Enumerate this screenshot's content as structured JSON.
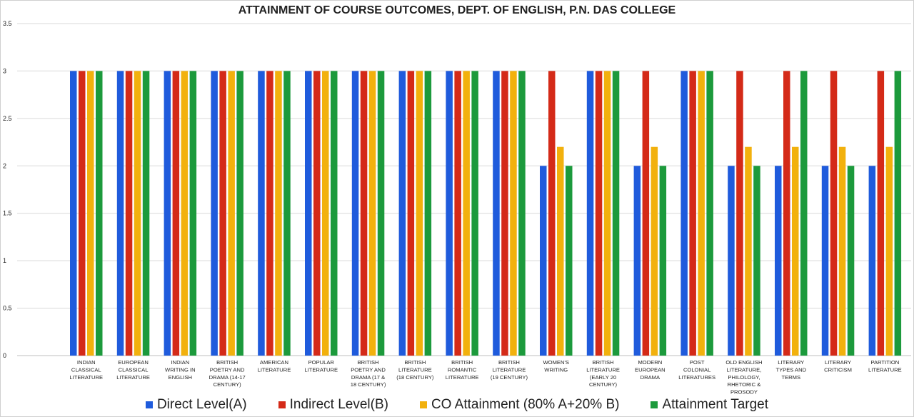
{
  "colors": {
    "direct": "#1f5bdc",
    "indirect": "#d42a18",
    "co": "#f2b10d",
    "target": "#1c9a3c",
    "grid": "#d9d9d9",
    "text": "#222222"
  },
  "chart_data": {
    "type": "bar",
    "title": "ATTAINMENT OF COURSE OUTCOMES, DEPT. OF ENGLISH, P.N. DAS COLLEGE",
    "ylim": [
      0,
      3.5
    ],
    "yticks": [
      "0",
      "0.5",
      "1",
      "1.5",
      "2",
      "2.5",
      "3",
      "3.5"
    ],
    "grid": true,
    "legend_position": "bottom",
    "categories": [
      [
        "INDIAN",
        "CLASSICAL",
        "LITERATURE"
      ],
      [
        "EUROPEAN",
        "CLASSICAL",
        "LITERATURE"
      ],
      [
        "INDIAN",
        "WRITING IN",
        "ENGLISH"
      ],
      [
        "BRITISH",
        "POETRY AND",
        "DRAMA (14-17",
        "CENTURY)"
      ],
      [
        "AMERICAN",
        "LITERATURE"
      ],
      [
        "POPULAR",
        "LITERATURE"
      ],
      [
        "BRITISH",
        "POETRY AND",
        "DRAMA    (17 &",
        "18 CENTURY)"
      ],
      [
        "BRITISH",
        "LITERATURE",
        "(18 CENTURY)"
      ],
      [
        "BRITISH",
        "ROMANTIC",
        "LITERATURE"
      ],
      [
        "BRITISH",
        "LITERATURE",
        "(19 CENTURY)"
      ],
      [
        "WOMEN'S",
        "WRITING"
      ],
      [
        "BRITISH",
        "LITERATURE",
        "(EARLY 20",
        "CENTURY)"
      ],
      [
        "MODERN",
        "EUROPEAN",
        "DRAMA"
      ],
      [
        "POST",
        "COLONIAL",
        "LITERATURES"
      ],
      [
        "OLD ENGLISH",
        "LITERATURE,",
        "PHILOLOGY,",
        "RHETORIC &",
        "PROSODY"
      ],
      [
        "LITERARY",
        "TYPES AND",
        "TERMS"
      ],
      [
        "LITERARY",
        "CRITICISM"
      ],
      [
        "PARTITION",
        "LITERATURE"
      ]
    ],
    "series": [
      {
        "name": "Direct Level(A)",
        "color_key": "direct",
        "values": [
          3,
          3,
          3,
          3,
          3,
          3,
          3,
          3,
          3,
          3,
          2,
          3,
          2,
          3,
          2,
          2,
          2,
          2
        ]
      },
      {
        "name": "Indirect Level(B)",
        "color_key": "indirect",
        "values": [
          3,
          3,
          3,
          3,
          3,
          3,
          3,
          3,
          3,
          3,
          3,
          3,
          3,
          3,
          3,
          3,
          3,
          3
        ]
      },
      {
        "name": "CO Attainment (80% A+20% B)",
        "color_key": "co",
        "values": [
          3,
          3,
          3,
          3,
          3,
          3,
          3,
          3,
          3,
          3,
          2.2,
          3,
          2.2,
          3,
          2.2,
          2.2,
          2.2,
          2.2
        ]
      },
      {
        "name": "Attainment Target",
        "color_key": "target",
        "values": [
          3,
          3,
          3,
          3,
          3,
          3,
          3,
          3,
          3,
          3,
          2,
          3,
          2,
          3,
          2,
          3,
          2,
          3
        ]
      }
    ]
  }
}
